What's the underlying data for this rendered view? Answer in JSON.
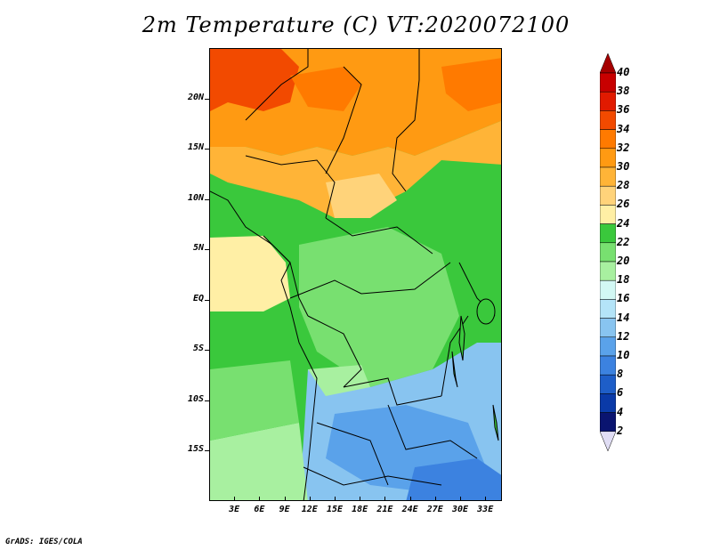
{
  "title": "2m Temperature (C) VT:2020072100",
  "footer": "GrADS: IGES/COLA",
  "map": {
    "region": "Central Africa",
    "lat_range": [
      -20,
      25
    ],
    "lon_range": [
      0,
      35
    ],
    "lat_labels": [
      "20N",
      "15N",
      "10N",
      "5N",
      "EQ",
      "5S",
      "10S",
      "15S"
    ],
    "lat_values": [
      20,
      15,
      10,
      5,
      0,
      -5,
      -10,
      -15
    ],
    "lon_labels": [
      "3E",
      "6E",
      "9E",
      "12E",
      "15E",
      "18E",
      "21E",
      "24E",
      "27E",
      "30E",
      "33E"
    ],
    "lon_values": [
      3,
      6,
      9,
      12,
      15,
      18,
      21,
      24,
      27,
      30,
      33
    ]
  },
  "colorbar": {
    "labels": [
      "40",
      "38",
      "36",
      "34",
      "32",
      "30",
      "28",
      "26",
      "24",
      "22",
      "20",
      "18",
      "16",
      "14",
      "12",
      "10",
      "8",
      "6",
      "4",
      "2"
    ],
    "colors": [
      "#a50000",
      "#c80000",
      "#e11a00",
      "#f24a00",
      "#ff7a00",
      "#ff9a12",
      "#ffb437",
      "#ffd37a",
      "#ffefa5",
      "#3ac83c",
      "#78e070",
      "#a8f0a0",
      "#d2f8f4",
      "#b4e4f8",
      "#88c4f0",
      "#5aa2ea",
      "#3c82e0",
      "#1e5ec8",
      "#0a3aa8",
      "#0a1470"
    ],
    "top_color": "#a50000",
    "bottom_color": "#e0ddf4"
  },
  "legend_colors": {
    "hot": "#ff7a00",
    "warm": "#ffd37a",
    "mild": "#3ac83c",
    "cool": "#5aa2ea"
  }
}
